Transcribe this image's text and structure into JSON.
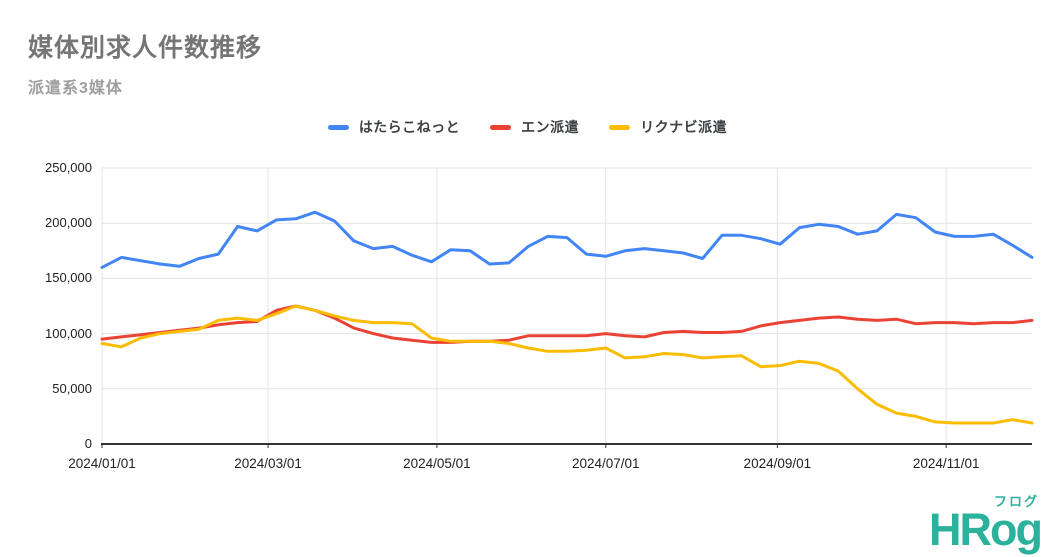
{
  "header": {
    "title": "媒体別求人件数推移",
    "subtitle": "派遣系3媒体"
  },
  "logo": {
    "text": "HRog",
    "kana": "フログ",
    "color": "#2cb29c"
  },
  "chart_data": {
    "type": "line",
    "title": "媒体別求人件数推移",
    "subtitle": "派遣系3媒体",
    "legend_position": "top",
    "grid": true,
    "x": [
      "2024/01/01",
      "2024/01/08",
      "2024/01/15",
      "2024/01/22",
      "2024/01/29",
      "2024/02/05",
      "2024/02/12",
      "2024/02/19",
      "2024/02/26",
      "2024/03/04",
      "2024/03/11",
      "2024/03/18",
      "2024/03/25",
      "2024/04/01",
      "2024/04/08",
      "2024/04/15",
      "2024/04/22",
      "2024/04/29",
      "2024/05/06",
      "2024/05/13",
      "2024/05/20",
      "2024/05/27",
      "2024/06/03",
      "2024/06/10",
      "2024/06/17",
      "2024/06/24",
      "2024/07/01",
      "2024/07/08",
      "2024/07/15",
      "2024/07/22",
      "2024/07/29",
      "2024/08/05",
      "2024/08/12",
      "2024/08/19",
      "2024/08/26",
      "2024/09/02",
      "2024/09/09",
      "2024/09/16",
      "2024/09/23",
      "2024/09/30",
      "2024/10/07",
      "2024/10/14",
      "2024/10/21",
      "2024/10/28",
      "2024/11/04",
      "2024/11/11",
      "2024/11/18",
      "2024/11/25",
      "2024/12/02"
    ],
    "series": [
      {
        "name": "はたらこねっと",
        "color": "#4285f4",
        "values": [
          160000,
          169000,
          166000,
          163000,
          161000,
          168000,
          172000,
          197000,
          193000,
          203000,
          204000,
          210000,
          202000,
          184000,
          177000,
          179000,
          171000,
          165000,
          176000,
          175000,
          163000,
          164000,
          179000,
          188000,
          187000,
          172000,
          170000,
          175000,
          177000,
          175000,
          173000,
          168000,
          189000,
          189000,
          186000,
          181000,
          196000,
          199000,
          197000,
          190000,
          193000,
          208000,
          205000,
          192000,
          188000,
          188000,
          190000,
          180000,
          169000
        ]
      },
      {
        "name": "エン派遣",
        "color": "#ea4335",
        "values": [
          95000,
          97000,
          99000,
          101000,
          103000,
          105000,
          108000,
          110000,
          111000,
          121000,
          125000,
          121000,
          114000,
          105000,
          100000,
          96000,
          94000,
          92000,
          92000,
          93000,
          93000,
          94000,
          98000,
          98000,
          98000,
          98000,
          100000,
          98000,
          97000,
          101000,
          102000,
          101000,
          101000,
          102000,
          107000,
          110000,
          112000,
          114000,
          115000,
          113000,
          112000,
          113000,
          109000,
          110000,
          110000,
          109000,
          110000,
          110000,
          112000
        ]
      },
      {
        "name": "リクナビ派遣",
        "color": "#fbbc04",
        "values": [
          91000,
          88000,
          96000,
          100000,
          102000,
          104000,
          112000,
          114000,
          112000,
          118000,
          125000,
          121000,
          116000,
          112000,
          110000,
          110000,
          109000,
          96000,
          93000,
          93000,
          93000,
          91000,
          87000,
          84000,
          84000,
          85000,
          87000,
          78000,
          79000,
          82000,
          81000,
          78000,
          79000,
          80000,
          70000,
          71000,
          75000,
          73000,
          66000,
          50000,
          36000,
          28000,
          25000,
          20000,
          19000,
          19000,
          19000,
          22000,
          19000
        ]
      }
    ],
    "xlabel": "",
    "ylabel": "",
    "y_min": 0,
    "y_max": 250000,
    "y_ticks": [
      {
        "value": 0,
        "label": "0"
      },
      {
        "value": 50000,
        "label": "50,000"
      },
      {
        "value": 100000,
        "label": "100,000"
      },
      {
        "value": 150000,
        "label": "150,000"
      },
      {
        "value": 200000,
        "label": "200,000"
      },
      {
        "value": 250000,
        "label": "250,000"
      }
    ],
    "x_ticks": [
      {
        "day": 0,
        "label": "2024/01/01"
      },
      {
        "day": 60,
        "label": "2024/03/01"
      },
      {
        "day": 121,
        "label": "2024/05/01"
      },
      {
        "day": 182,
        "label": "2024/07/01"
      },
      {
        "day": 244,
        "label": "2024/09/01"
      },
      {
        "day": 305,
        "label": "2024/11/01"
      }
    ],
    "total_days": 336,
    "grid_color": "#e3e3e3",
    "axis_color": "#333333",
    "line_width": 3
  }
}
